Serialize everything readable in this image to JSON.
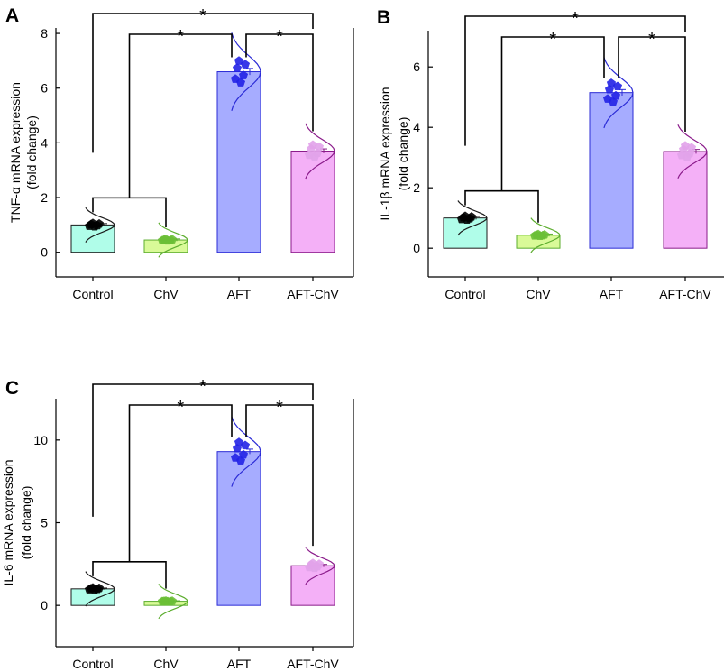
{
  "colors": {
    "Control": {
      "fill": "#b0fde9",
      "stroke": "#1a1a1a",
      "dot": "#000000"
    },
    "ChV": {
      "fill": "#d9fa98",
      "stroke": "#5cad2e",
      "dot": "#6bbf36"
    },
    "AFT": {
      "fill": "#a6acff",
      "stroke": "#2b2bd6",
      "dot": "#2323e6"
    },
    "AFT-ChV": {
      "fill": "#f4b0f7",
      "stroke": "#8a1a8a",
      "dot": "#e2a3ea"
    }
  },
  "chart_data": [
    {
      "panel": "A",
      "type": "bar",
      "ylabel_line1": "TNF-α  mRNA expression",
      "ylabel_line2": "(fold change)",
      "categories": [
        "Control",
        "ChV",
        "AFT",
        "AFT-ChV"
      ],
      "values": [
        1.0,
        0.45,
        6.6,
        3.7
      ],
      "errors": [
        0.05,
        0.04,
        0.12,
        0.08
      ],
      "ylim": [
        -0.9,
        8.2
      ],
      "yticks": [
        0,
        2,
        4,
        6,
        8
      ],
      "annotations": [
        "*",
        "*",
        "*"
      ]
    },
    {
      "panel": "B",
      "type": "bar",
      "ylabel_line1": "IL-1β mRNA expression",
      "ylabel_line2": "(fold change)",
      "categories": [
        "Control",
        "ChV",
        "AFT",
        "AFT-ChV"
      ],
      "values": [
        1.0,
        0.43,
        5.15,
        3.2
      ],
      "errors": [
        0.05,
        0.04,
        0.1,
        0.07
      ],
      "ylim": [
        -0.95,
        7.2
      ],
      "yticks": [
        0,
        2,
        4,
        6
      ],
      "annotations": [
        "*",
        "*",
        "*"
      ]
    },
    {
      "panel": "C",
      "type": "bar",
      "ylabel_line1": "IL-6 mRNA expression",
      "ylabel_line2": "(fold change)",
      "categories": [
        "Control",
        "ChV",
        "AFT",
        "AFT-ChV"
      ],
      "values": [
        1.0,
        0.25,
        9.3,
        2.4
      ],
      "errors": [
        0.05,
        0.03,
        0.15,
        0.08
      ],
      "ylim": [
        -2.5,
        12.5
      ],
      "yticks": [
        0,
        5,
        10
      ],
      "annotations": [
        "*",
        "*",
        "*"
      ]
    }
  ]
}
